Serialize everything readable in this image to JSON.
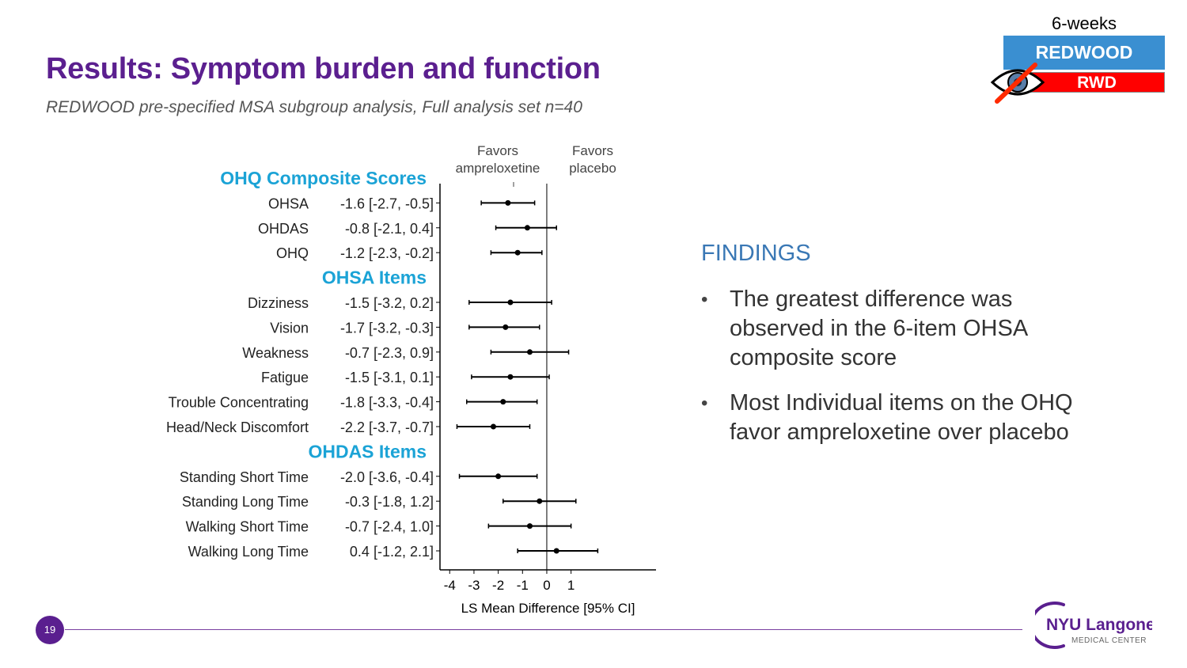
{
  "slide": {
    "title": "Results: Symptom burden and function",
    "subtitle": "REDWOOD pre-specified MSA subgroup analysis, Full analysis set n=40",
    "page_number": "19"
  },
  "badge": {
    "weeks": "6-weeks",
    "primary": "REDWOOD",
    "secondary": "RWD",
    "icon": "crossed-eye-icon",
    "primary_color": "#3a8fd1",
    "secondary_color": "#ff0000"
  },
  "findings": {
    "heading": "FINDINGS",
    "items": [
      "The greatest difference was observed in the 6-item OHSA composite score",
      "Most Individual items on the OHQ favor ampreloxetine over placebo"
    ]
  },
  "logo": {
    "name": "NYU Langone",
    "tagline": "MEDICAL CENTER"
  },
  "colors": {
    "title": "#5b1f8f",
    "section_header": "#1ba3d6",
    "findings_heading": "#3a78b5"
  },
  "chart_data": {
    "type": "forest",
    "xlabel": "LS Mean Difference [95% CI]",
    "xlim": [
      -4.4,
      4.5
    ],
    "xticks": [
      -4,
      -3,
      -2,
      -1,
      0,
      1
    ],
    "reference_line": 0,
    "favors_left": [
      "Favors",
      "ampreloxetine"
    ],
    "favors_right": [
      "Favors",
      "placebo"
    ],
    "rows": [
      {
        "kind": "header",
        "label": "OHQ Composite Scores"
      },
      {
        "kind": "item",
        "label": "OHSA",
        "text": "-1.6 [-2.7, -0.5]",
        "est": -1.6,
        "lo": -2.7,
        "hi": -0.5
      },
      {
        "kind": "item",
        "label": "OHDAS",
        "text": "-0.8 [-2.1,  0.4]",
        "est": -0.8,
        "lo": -2.1,
        "hi": 0.4
      },
      {
        "kind": "item",
        "label": "OHQ",
        "text": "-1.2 [-2.3, -0.2]",
        "est": -1.2,
        "lo": -2.3,
        "hi": -0.2
      },
      {
        "kind": "header",
        "label": "OHSA Items"
      },
      {
        "kind": "item",
        "label": "Dizziness",
        "text": "-1.5 [-3.2,  0.2]",
        "est": -1.5,
        "lo": -3.2,
        "hi": 0.2
      },
      {
        "kind": "item",
        "label": "Vision",
        "text": "-1.7 [-3.2, -0.3]",
        "est": -1.7,
        "lo": -3.2,
        "hi": -0.3
      },
      {
        "kind": "item",
        "label": "Weakness",
        "text": "-0.7 [-2.3,  0.9]",
        "est": -0.7,
        "lo": -2.3,
        "hi": 0.9
      },
      {
        "kind": "item",
        "label": "Fatigue",
        "text": "-1.5 [-3.1,  0.1]",
        "est": -1.5,
        "lo": -3.1,
        "hi": 0.1
      },
      {
        "kind": "item",
        "label": "Trouble Concentrating",
        "text": "-1.8 [-3.3, -0.4]",
        "est": -1.8,
        "lo": -3.3,
        "hi": -0.4
      },
      {
        "kind": "item",
        "label": "Head/Neck Discomfort",
        "text": "-2.2 [-3.7, -0.7]",
        "est": -2.2,
        "lo": -3.7,
        "hi": -0.7
      },
      {
        "kind": "header",
        "label": "OHDAS Items"
      },
      {
        "kind": "item",
        "label": "Standing Short Time",
        "text": "-2.0 [-3.6, -0.4]",
        "est": -2.0,
        "lo": -3.6,
        "hi": -0.4
      },
      {
        "kind": "item",
        "label": "Standing Long Time",
        "text": "-0.3 [-1.8,  1.2]",
        "est": -0.3,
        "lo": -1.8,
        "hi": 1.2
      },
      {
        "kind": "item",
        "label": "Walking Short Time",
        "text": "-0.7 [-2.4,  1.0]",
        "est": -0.7,
        "lo": -2.4,
        "hi": 1.0
      },
      {
        "kind": "item",
        "label": "Walking Long Time",
        "text": "0.4 [-1.2,  2.1]",
        "est": 0.4,
        "lo": -1.2,
        "hi": 2.1
      }
    ]
  }
}
